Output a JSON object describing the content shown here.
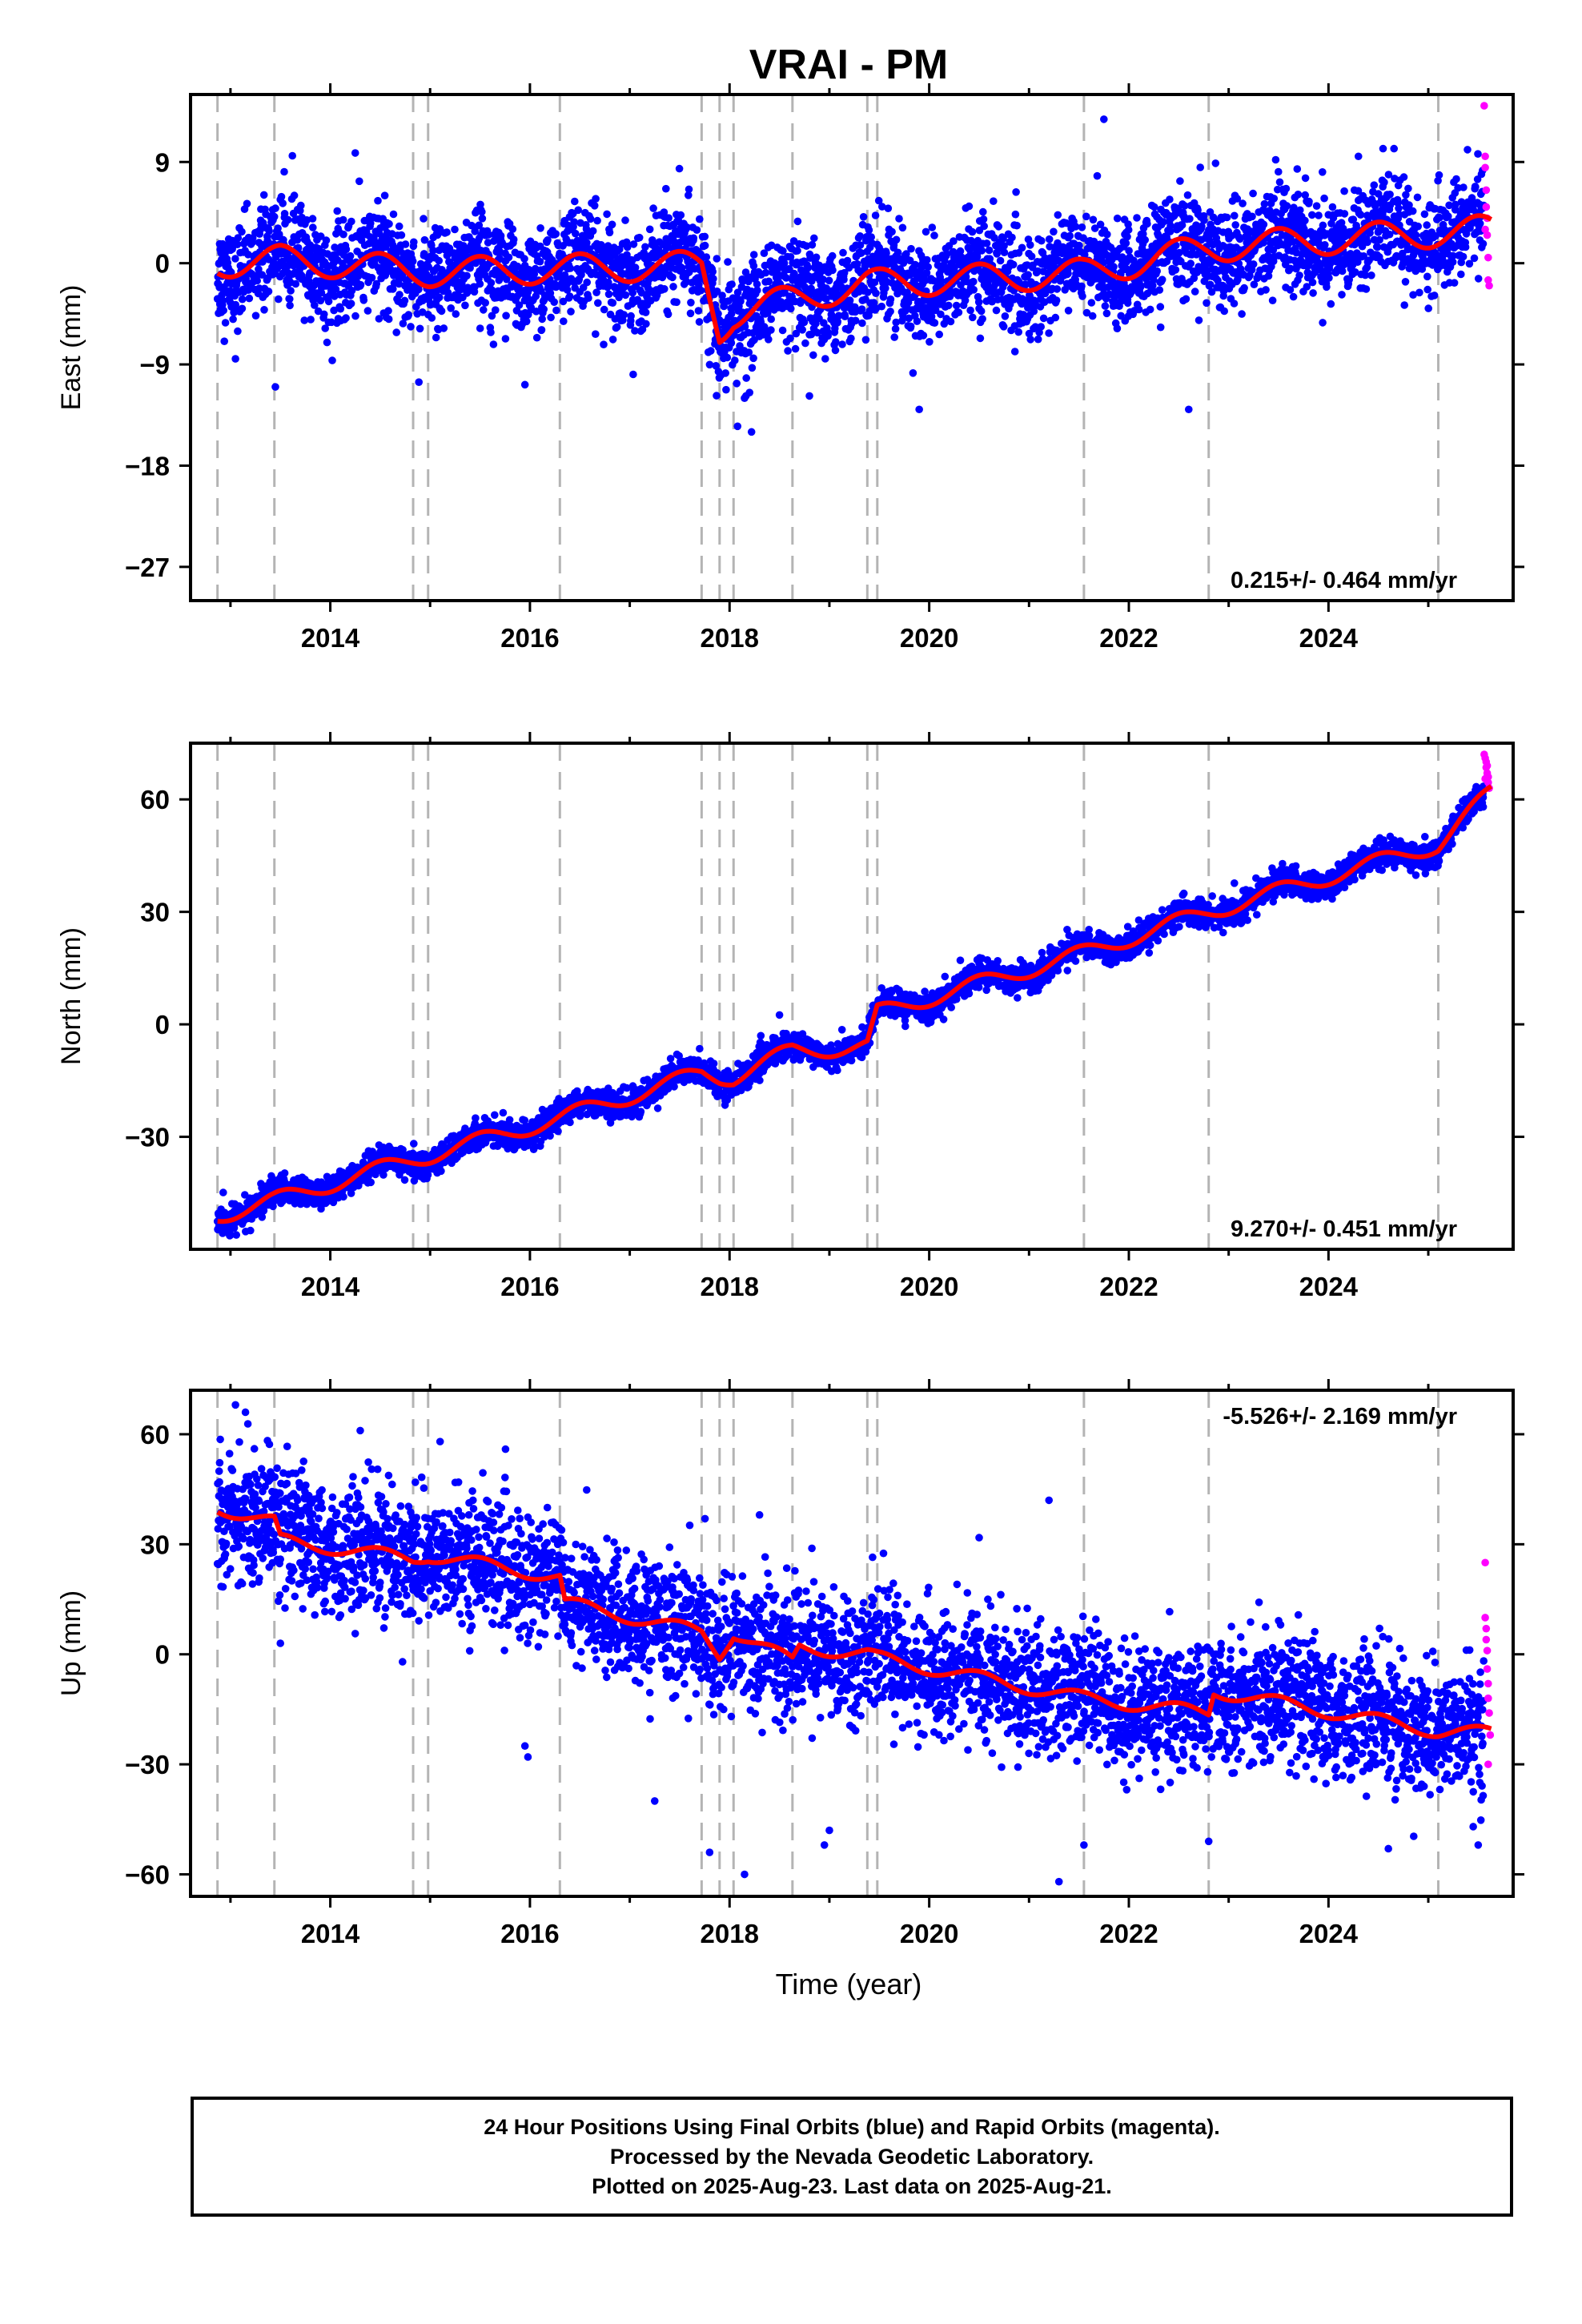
{
  "title": "VRAI - PM",
  "xlabel": "Time (year)",
  "footer": {
    "line1": "24 Hour Positions Using Final Orbits (blue) and Rapid Orbits (magenta).",
    "line2": "Processed by the Nevada Geodetic Laboratory.",
    "line3": "Plotted on 2025-Aug-23. Last data on 2025-Aug-21."
  },
  "colors": {
    "final": "#0000ff",
    "rapid": "#ff00ff",
    "model": "#ff0000",
    "steps": "#b4b4b4"
  },
  "chart_data": [
    {
      "type": "scatter",
      "component": "East",
      "ylabel": "East (mm)",
      "xlim": [
        2012.6,
        2025.85
      ],
      "ylim": [
        -30,
        15
      ],
      "x_ticks": [
        2014,
        2016,
        2018,
        2020,
        2022,
        2024
      ],
      "y_ticks": [
        9,
        0,
        -9,
        -18,
        -27
      ],
      "rate_label": "0.215+/- 0.464 mm/yr",
      "rate_position": "bottom-right",
      "step_epochs": [
        2012.87,
        2013.44,
        2014.83,
        2014.98,
        2016.3,
        2017.72,
        2017.9,
        2018.04,
        2018.63,
        2019.38,
        2019.48,
        2021.55,
        2022.8,
        2025.1
      ],
      "amplitude": 1.3,
      "noise_sd": 2.2,
      "model_line": [
        {
          "x": 2012.87,
          "y": 0.0
        },
        {
          "x": 2013.5,
          "y": 0.3
        },
        {
          "x": 2014.0,
          "y": 0.0
        },
        {
          "x": 2014.83,
          "y": -0.7
        },
        {
          "x": 2014.98,
          "y": -0.8
        },
        {
          "x": 2016.3,
          "y": -0.5
        },
        {
          "x": 2017.72,
          "y": -0.2
        },
        {
          "x": 2017.9,
          "y": -6.0
        },
        {
          "x": 2018.04,
          "y": -4.5
        },
        {
          "x": 2018.63,
          "y": -3.2
        },
        {
          "x": 2019.38,
          "y": -1.8
        },
        {
          "x": 2019.48,
          "y": -1.8
        },
        {
          "x": 2021.55,
          "y": -0.9
        },
        {
          "x": 2022.8,
          "y": 1.4
        },
        {
          "x": 2025.1,
          "y": 2.7
        },
        {
          "x": 2025.63,
          "y": 3.0
        }
      ],
      "outliers": [
        {
          "x": 2018.08,
          "y": -14.5
        },
        {
          "x": 2018.22,
          "y": -15.0
        },
        {
          "x": 2018.15,
          "y": -12.0
        },
        {
          "x": 2018.2,
          "y": -11.5
        },
        {
          "x": 2019.9,
          "y": -13.0
        },
        {
          "x": 2015.95,
          "y": -10.8
        },
        {
          "x": 2021.75,
          "y": 12.8
        },
        {
          "x": 2014.25,
          "y": 9.8
        },
        {
          "x": 2024.3,
          "y": 9.5
        },
        {
          "x": 2022.6,
          "y": -13.0
        },
        {
          "x": 2018.8,
          "y": -11.8
        },
        {
          "x": 2013.05,
          "y": -8.5
        },
        {
          "x": 2013.45,
          "y": -11.0
        }
      ],
      "rapid_points": [
        {
          "x": 2025.56,
          "y": 14.0
        },
        {
          "x": 2025.57,
          "y": 9.5
        },
        {
          "x": 2025.57,
          "y": 8.5
        },
        {
          "x": 2025.58,
          "y": 6.5
        },
        {
          "x": 2025.58,
          "y": 5.0
        },
        {
          "x": 2025.59,
          "y": 4.0
        },
        {
          "x": 2025.59,
          "y": 2.5
        },
        {
          "x": 2025.6,
          "y": 0.5
        },
        {
          "x": 2025.6,
          "y": -1.5
        },
        {
          "x": 2025.61,
          "y": -2.0
        },
        {
          "x": 2025.57,
          "y": 3.0
        }
      ]
    },
    {
      "type": "scatter",
      "component": "North",
      "ylabel": "North (mm)",
      "xlim": [
        2012.6,
        2025.85
      ],
      "ylim": [
        -60,
        75
      ],
      "x_ticks": [
        2014,
        2016,
        2018,
        2020,
        2022,
        2024
      ],
      "y_ticks": [
        60,
        30,
        0,
        -30
      ],
      "rate_label": "9.270+/- 0.451 mm/yr",
      "rate_position": "bottom-right",
      "step_epochs": [
        2012.87,
        2013.44,
        2014.83,
        2014.98,
        2016.3,
        2017.72,
        2017.9,
        2018.04,
        2018.63,
        2019.38,
        2019.48,
        2021.55,
        2022.8,
        2025.1
      ],
      "amplitude": 2.2,
      "noise_sd": 1.8,
      "model_line": [
        {
          "x": 2012.87,
          "y": -51.0
        },
        {
          "x": 2013.44,
          "y": -47.0
        },
        {
          "x": 2014.83,
          "y": -36.0
        },
        {
          "x": 2014.98,
          "y": -35.0
        },
        {
          "x": 2016.3,
          "y": -25.0
        },
        {
          "x": 2017.72,
          "y": -13.0
        },
        {
          "x": 2017.9,
          "y": -14.0
        },
        {
          "x": 2018.04,
          "y": -14.0
        },
        {
          "x": 2018.63,
          "y": -7.0
        },
        {
          "x": 2019.38,
          "y": -6.0
        },
        {
          "x": 2019.48,
          "y": 3.0
        },
        {
          "x": 2021.55,
          "y": 19.0
        },
        {
          "x": 2022.8,
          "y": 30.0
        },
        {
          "x": 2025.1,
          "y": 48.0
        },
        {
          "x": 2025.63,
          "y": 62.0
        }
      ],
      "outliers": [
        {
          "x": 2013.0,
          "y": -56.0
        },
        {
          "x": 2013.2,
          "y": -55.0
        },
        {
          "x": 2017.7,
          "y": -6.5
        },
        {
          "x": 2018.5,
          "y": 2.5
        },
        {
          "x": 2025.55,
          "y": 58.0
        }
      ],
      "rapid_points": [
        {
          "x": 2025.56,
          "y": 72.0
        },
        {
          "x": 2025.57,
          "y": 71.0
        },
        {
          "x": 2025.58,
          "y": 70.0
        },
        {
          "x": 2025.58,
          "y": 68.5
        },
        {
          "x": 2025.59,
          "y": 67.0
        },
        {
          "x": 2025.6,
          "y": 66.0
        },
        {
          "x": 2025.6,
          "y": 64.5
        },
        {
          "x": 2025.61,
          "y": 63.0
        },
        {
          "x": 2025.57,
          "y": 65.5
        },
        {
          "x": 2025.59,
          "y": 69.0
        }
      ]
    },
    {
      "type": "scatter",
      "component": "Up",
      "ylabel": "Up (mm)",
      "xlim": [
        2012.6,
        2025.85
      ],
      "ylim": [
        -66,
        72
      ],
      "x_ticks": [
        2014,
        2016,
        2018,
        2020,
        2022,
        2024
      ],
      "y_ticks": [
        60,
        30,
        0,
        -30,
        -60
      ],
      "rate_label": "-5.526+/- 2.169 mm/yr",
      "rate_position": "top-right",
      "step_epochs": [
        2012.87,
        2013.44,
        2014.83,
        2014.98,
        2016.3,
        2017.72,
        2017.9,
        2018.04,
        2018.63,
        2019.38,
        2019.48,
        2021.55,
        2022.8,
        2025.1
      ],
      "amplitude": 1.8,
      "noise_sd": 8.5,
      "model_line": [
        {
          "x": 2012.87,
          "y": 40.0
        },
        {
          "x": 2013.44,
          "y": 36.0
        },
        {
          "x": 2013.5,
          "y": 31.0
        },
        {
          "x": 2014.83,
          "y": 26.0
        },
        {
          "x": 2014.98,
          "y": 27.0
        },
        {
          "x": 2016.3,
          "y": 21.0
        },
        {
          "x": 2016.35,
          "y": 14.0
        },
        {
          "x": 2017.72,
          "y": 6.0
        },
        {
          "x": 2017.9,
          "y": 0.0
        },
        {
          "x": 2018.04,
          "y": 6.0
        },
        {
          "x": 2018.63,
          "y": -2.0
        },
        {
          "x": 2018.7,
          "y": 2.0
        },
        {
          "x": 2019.38,
          "y": 0.0
        },
        {
          "x": 2019.48,
          "y": -1.0
        },
        {
          "x": 2021.55,
          "y": -12.0
        },
        {
          "x": 2022.8,
          "y": -16.0
        },
        {
          "x": 2022.85,
          "y": -10.0
        },
        {
          "x": 2025.1,
          "y": -21.0
        },
        {
          "x": 2025.63,
          "y": -21.5
        }
      ],
      "outliers": [
        {
          "x": 2013.05,
          "y": 68.0
        },
        {
          "x": 2013.15,
          "y": 66.0
        },
        {
          "x": 2014.3,
          "y": 61.0
        },
        {
          "x": 2015.1,
          "y": 58.0
        },
        {
          "x": 2015.95,
          "y": -25.0
        },
        {
          "x": 2015.98,
          "y": -28.0
        },
        {
          "x": 2017.8,
          "y": -54.0
        },
        {
          "x": 2018.15,
          "y": -60.0
        },
        {
          "x": 2019.0,
          "y": -48.0
        },
        {
          "x": 2018.95,
          "y": -52.0
        },
        {
          "x": 2021.3,
          "y": -62.0
        },
        {
          "x": 2021.55,
          "y": -52.0
        },
        {
          "x": 2021.2,
          "y": 42.0
        },
        {
          "x": 2022.8,
          "y": -51.0
        },
        {
          "x": 2024.6,
          "y": -53.0
        },
        {
          "x": 2025.5,
          "y": -52.0
        },
        {
          "x": 2018.3,
          "y": 38.0
        },
        {
          "x": 2013.5,
          "y": 3.0
        },
        {
          "x": 2017.25,
          "y": -40.0
        },
        {
          "x": 2025.45,
          "y": -47.0
        }
      ],
      "rapid_points": [
        {
          "x": 2025.57,
          "y": 25.0
        },
        {
          "x": 2025.57,
          "y": 10.0
        },
        {
          "x": 2025.58,
          "y": 7.0
        },
        {
          "x": 2025.58,
          "y": 4.0
        },
        {
          "x": 2025.59,
          "y": 1.0
        },
        {
          "x": 2025.59,
          "y": -4.0
        },
        {
          "x": 2025.6,
          "y": -8.0
        },
        {
          "x": 2025.6,
          "y": -12.0
        },
        {
          "x": 2025.61,
          "y": -16.0
        },
        {
          "x": 2025.62,
          "y": -22.0
        },
        {
          "x": 2025.6,
          "y": -30.0
        }
      ]
    }
  ]
}
